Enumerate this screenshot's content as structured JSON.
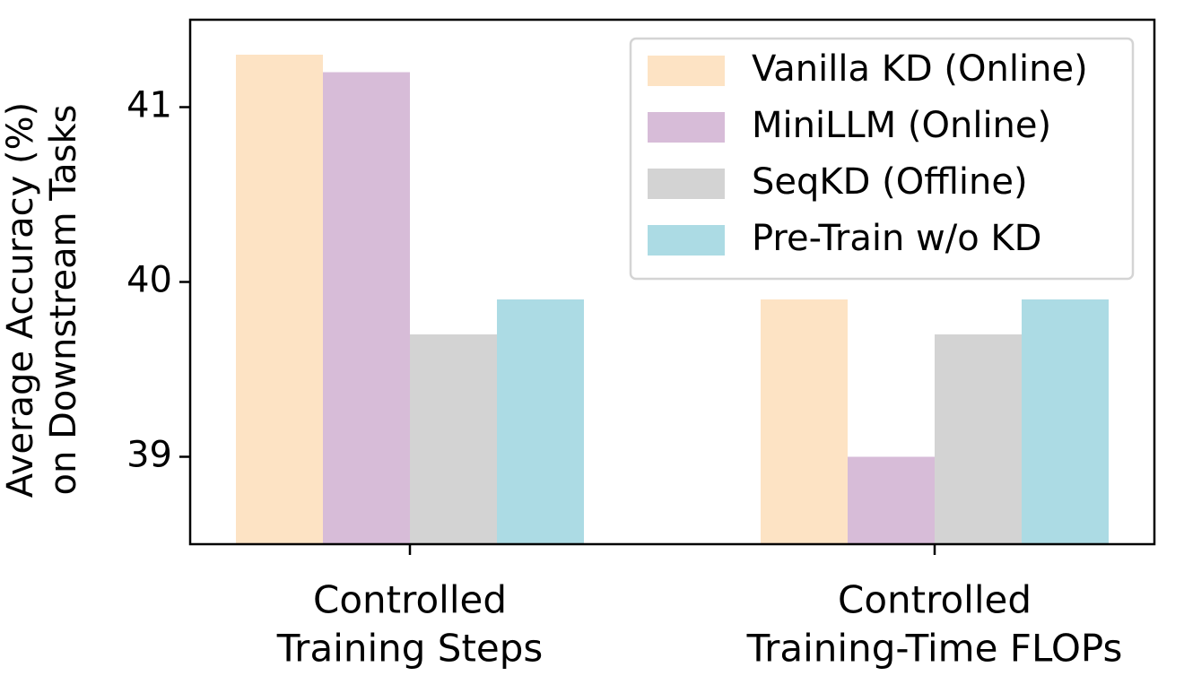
{
  "chart_data": {
    "type": "bar",
    "ylabel_lines": [
      "Average Accuracy (%)",
      "on Downstream Tasks"
    ],
    "categories": [
      {
        "lines": [
          "Controlled",
          "Training Steps"
        ]
      },
      {
        "lines": [
          "Controlled",
          "Training-Time FLOPs"
        ]
      }
    ],
    "series": [
      {
        "name": "Vanilla KD (Online)",
        "color": "#fde3c4",
        "values": [
          41.3,
          39.9
        ]
      },
      {
        "name": "MiniLLM (Online)",
        "color": "#d7bcd8",
        "values": [
          41.2,
          39.0
        ]
      },
      {
        "name": "SeqKD (Offline)",
        "color": "#d3d3d3",
        "values": [
          39.7,
          39.7
        ]
      },
      {
        "name": "Pre-Train w/o KD",
        "color": "#acdbe4",
        "values": [
          39.9,
          39.9
        ]
      }
    ],
    "ylim": [
      38.5,
      41.5
    ],
    "yticks": [
      39,
      40,
      41
    ],
    "legend_position": "upper right",
    "grid": false
  }
}
